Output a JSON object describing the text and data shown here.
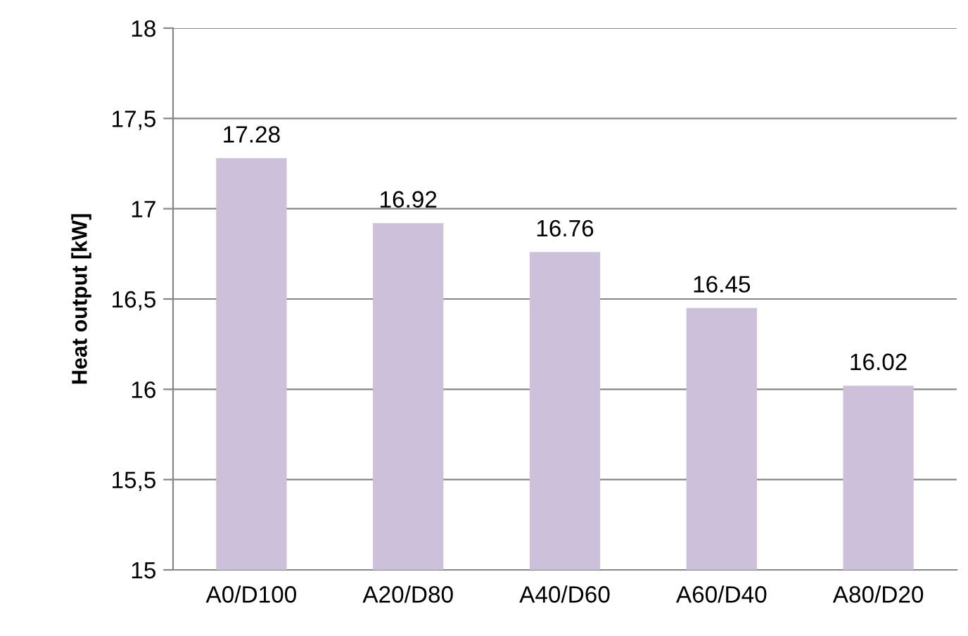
{
  "chart_data": {
    "type": "bar",
    "ylabel": "Heat output [kW]",
    "categories": [
      "A0/D100",
      "A20/D80",
      "A40/D60",
      "A60/D40",
      "A80/D20"
    ],
    "values": [
      17.28,
      16.92,
      16.76,
      16.45,
      16.02
    ],
    "color": "#ccc0da",
    "ylim": [
      15,
      18
    ],
    "yticks": [
      15,
      {
        "value": 15.5,
        "label": "15,5"
      },
      16,
      {
        "value": 16.5,
        "label": "16,5"
      },
      17,
      {
        "value": 17.5,
        "label": "17,5"
      },
      18
    ],
    "grid": "y",
    "data_labels": true,
    "legend": false
  }
}
